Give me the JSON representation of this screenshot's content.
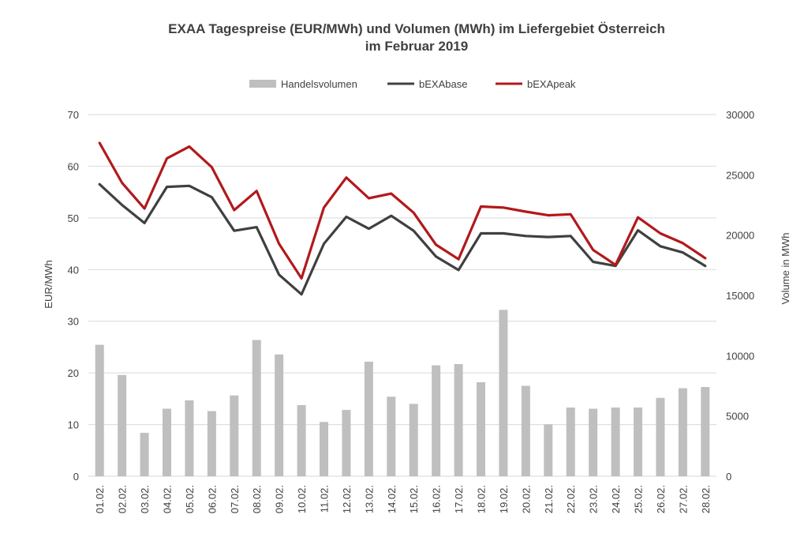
{
  "chart_data": {
    "type": "bar",
    "title": "EXAA Tagespreise (EUR/MWh) und Volumen (MWh) im Liefergebiet Österreich",
    "subtitle": "im Februar 2019",
    "ylabel_left": "EUR/MWh",
    "ylabel_right": "Volume in MWh",
    "ylim_left": [
      0,
      70
    ],
    "ylim_right": [
      0,
      30000
    ],
    "yticks_left": [
      "0",
      "10",
      "20",
      "30",
      "40",
      "50",
      "60",
      "70"
    ],
    "yticks_right": [
      "0",
      "5000",
      "10000",
      "15000",
      "20000",
      "25000",
      "30000"
    ],
    "grid": true,
    "legend_position": "top-center",
    "categories": [
      "01.02.",
      "02.02.",
      "03.02.",
      "04.02.",
      "05.02.",
      "06.02.",
      "07.02.",
      "08.02.",
      "09.02.",
      "10.02.",
      "11.02.",
      "12.02.",
      "13.02.",
      "14.02.",
      "15.02.",
      "16.02.",
      "17.02.",
      "18.02.",
      "19.02.",
      "20.02.",
      "21.02.",
      "22.02.",
      "23.02.",
      "24.02.",
      "25.02.",
      "26.02.",
      "27.02.",
      "28.02."
    ],
    "series": [
      {
        "name": "Handelsvolumen",
        "kind": "bar",
        "axis": "right",
        "color": "#bfbfbf",
        "values": [
          10900,
          8400,
          3600,
          5600,
          6300,
          5400,
          6700,
          11300,
          10100,
          5900,
          4500,
          5500,
          9500,
          6600,
          6000,
          9200,
          9300,
          7800,
          13800,
          7500,
          4300,
          5700,
          5600,
          5700,
          5700,
          6500,
          7300,
          7400
        ]
      },
      {
        "name": "bEXAbase",
        "kind": "line",
        "axis": "left",
        "color": "#404040",
        "values": [
          56.5,
          52.5,
          49.0,
          56.0,
          56.2,
          54.0,
          47.5,
          48.2,
          39.0,
          35.2,
          45.0,
          50.2,
          47.9,
          50.4,
          47.5,
          42.5,
          39.9,
          47.0,
          47.0,
          46.5,
          46.3,
          46.5,
          41.5,
          40.7,
          47.6,
          44.5,
          43.3,
          40.7
        ]
      },
      {
        "name": "bEXApeak",
        "kind": "line",
        "axis": "left",
        "color": "#b2191c",
        "values": [
          64.5,
          56.8,
          51.8,
          61.5,
          63.8,
          59.8,
          51.5,
          55.2,
          45.0,
          38.3,
          52.0,
          57.8,
          53.8,
          54.7,
          51.0,
          44.8,
          42.0,
          52.2,
          52.0,
          51.2,
          50.5,
          50.7,
          43.8,
          40.9,
          50.1,
          47.0,
          45.1,
          42.2
        ]
      }
    ]
  },
  "colors": {
    "grid": "#d9d9d9",
    "text": "#404040"
  }
}
